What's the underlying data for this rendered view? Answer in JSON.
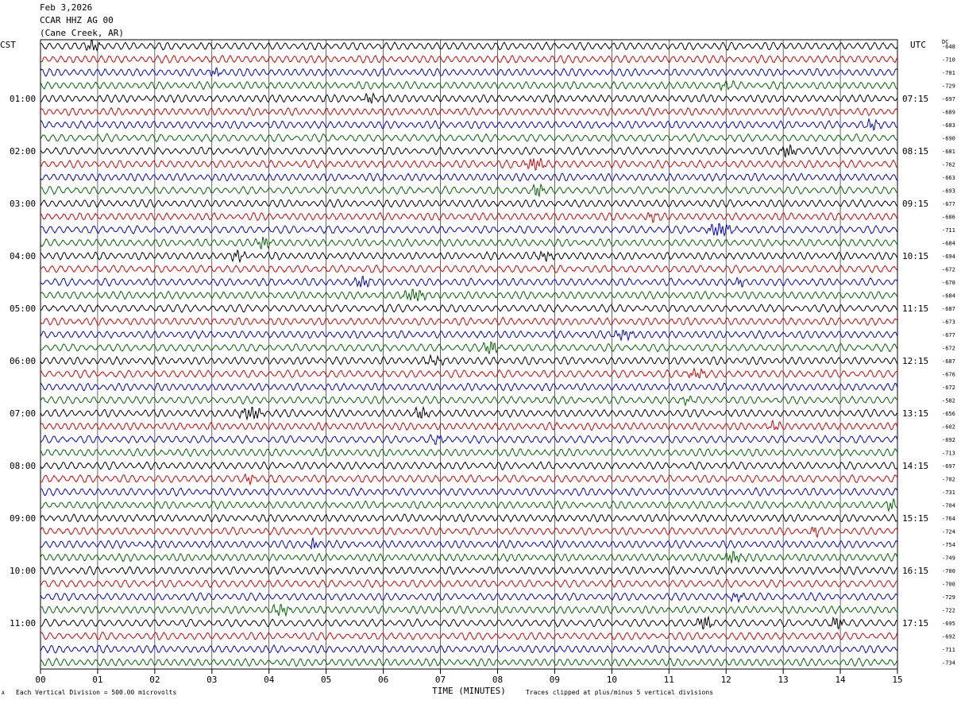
{
  "header": {
    "date": "Feb 3,2026",
    "station": "CCAR HHZ AG 00",
    "location": "(Cane Creek, AR)"
  },
  "left_zone": "CST",
  "right_zone": "UTC",
  "dc_label": "DC",
  "footer": {
    "scale": "Each Vertical Division =  500.00 microvolts",
    "clip": "Traces clipped at plus/minus 5 vertical divisions",
    "corner_mark": "A"
  },
  "chart_data": {
    "type": "line",
    "xlabel": "TIME (MINUTES)",
    "xlim": [
      0,
      15
    ],
    "x_ticks": [
      "00",
      "01",
      "02",
      "03",
      "04",
      "05",
      "06",
      "07",
      "08",
      "09",
      "10",
      "11",
      "12",
      "13",
      "14",
      "15"
    ],
    "trace_colors": [
      "#000000",
      "#dd0000",
      "#0000dd",
      "#006600"
    ],
    "grid": true,
    "left_hour_labels": [
      "01:00",
      "02:00",
      "03:00",
      "04:00",
      "05:00",
      "06:00",
      "07:00",
      "08:00",
      "09:00",
      "10:00",
      "11:00"
    ],
    "right_hour_labels": [
      "07:15",
      "08:15",
      "09:15",
      "10:15",
      "11:15",
      "12:15",
      "13:15",
      "14:15",
      "15:15",
      "16:15",
      "17:15"
    ],
    "dc_offsets": [
      "-648",
      "-710",
      "-701",
      "-729",
      "-697",
      "-689",
      "-683",
      "-690",
      "-681",
      "-762",
      "-663",
      "-693",
      "-677",
      "-686",
      "-711",
      "-684",
      "-694",
      "-672",
      "-670",
      "-684",
      "-687",
      "-673",
      "-677",
      "-672",
      "-687",
      "-676",
      "-672",
      "-582",
      "-656",
      "-602",
      "-692",
      "-713",
      "-697",
      "-702",
      "-731",
      "-704",
      "-764",
      "-724",
      "-754",
      "-749",
      "-700",
      "-700",
      "-729",
      "-722",
      "-695",
      "-692",
      "-711",
      "-734"
    ]
  }
}
